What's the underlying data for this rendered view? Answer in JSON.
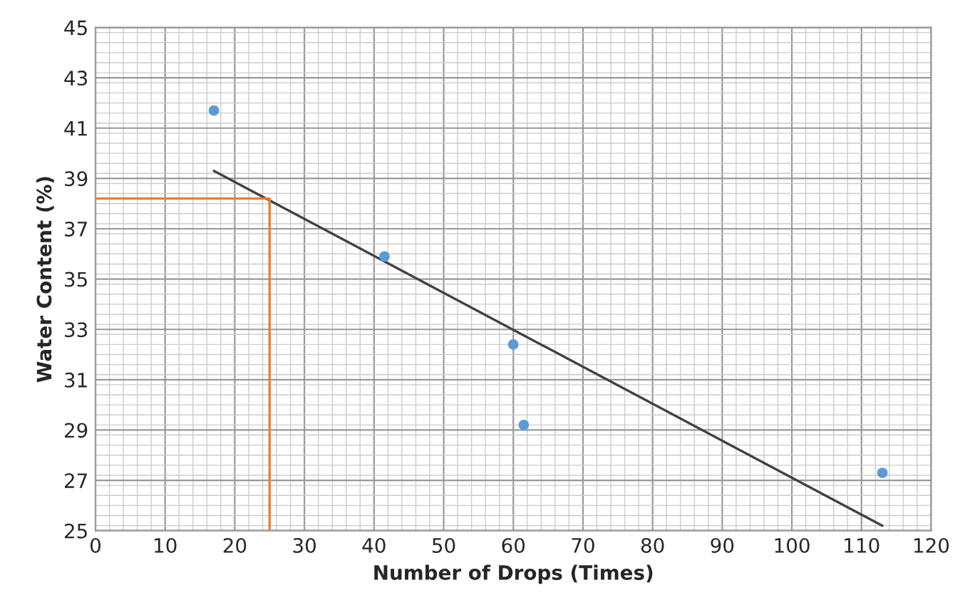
{
  "chart_data": {
    "type": "scatter",
    "xlabel": "Number of Drops (Times)",
    "ylabel": "Water Content (%)",
    "xlim": [
      0,
      120
    ],
    "xticks": [
      0,
      10,
      20,
      30,
      40,
      50,
      60,
      70,
      80,
      90,
      100,
      110,
      120
    ],
    "ylim": [
      25,
      45
    ],
    "yticks": [
      25,
      27,
      29,
      31,
      33,
      35,
      37,
      39,
      41,
      43,
      45
    ],
    "grid": true,
    "series": [
      {
        "marker": "circle",
        "color": "#5b9bd5",
        "x": [
          17,
          41.5,
          60,
          61.5,
          113
        ],
        "values": [
          41.7,
          35.9,
          32.4,
          29.2,
          27.3
        ]
      },
      {
        "type": "line",
        "color": "#404040",
        "x": [
          17,
          113
        ],
        "values": [
          39.3,
          25.2
        ]
      },
      {
        "type": "line",
        "color": "#ed7d31",
        "x": [
          0,
          25,
          25
        ],
        "values": [
          38.2,
          38.2,
          25
        ]
      }
    ]
  }
}
